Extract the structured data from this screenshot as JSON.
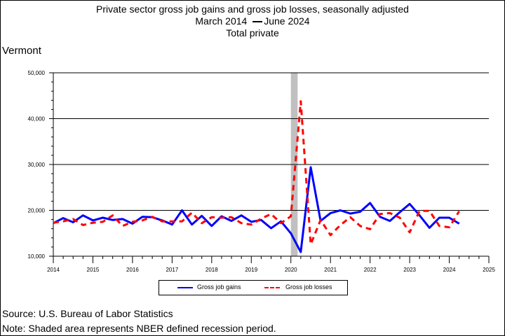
{
  "title": {
    "line1": "Private sector gross job gains and gross job losses, seasonally adjusted",
    "line2_start": "March 2014",
    "line2_end": "June 2024",
    "line3": "Total private"
  },
  "region": "Vermont",
  "footer": {
    "source": "Source: U.S. Bureau of Labor Statistics",
    "note": "Note: Shaded area represents NBER defined recession period."
  },
  "colors": {
    "gains": "#0000ff",
    "losses": "#ff0000",
    "recession": "#c0c0c0",
    "grid": "#000000"
  },
  "chart_data": {
    "type": "line",
    "title": "Private sector gross job gains and gross job losses, seasonally adjusted",
    "subtitle": "March 2014 — June 2024 · Total private",
    "xlabel": "",
    "ylabel": "",
    "xlim": [
      2014,
      2025
    ],
    "ylim": [
      10000,
      50000
    ],
    "x_ticks": [
      2014,
      2015,
      2016,
      2017,
      2018,
      2019,
      2020,
      2021,
      2022,
      2023,
      2024,
      2025
    ],
    "y_ticks": [
      10000,
      20000,
      30000,
      40000,
      50000
    ],
    "y_tick_labels": [
      "10,000",
      "20,000",
      "30,000",
      "40,000",
      "50,000"
    ],
    "grid": "horizontal",
    "legend": "bottom-center",
    "recession": {
      "start": 2020.0,
      "end": 2020.17
    },
    "x": [
      2014.0,
      2014.25,
      2014.5,
      2014.75,
      2015.0,
      2015.25,
      2015.5,
      2015.75,
      2016.0,
      2016.25,
      2016.5,
      2016.75,
      2017.0,
      2017.25,
      2017.5,
      2017.75,
      2018.0,
      2018.25,
      2018.5,
      2018.75,
      2019.0,
      2019.25,
      2019.5,
      2019.75,
      2020.0,
      2020.25,
      2020.5,
      2020.75,
      2021.0,
      2021.25,
      2021.5,
      2021.75,
      2022.0,
      2022.25,
      2022.5,
      2022.75,
      2023.0,
      2023.25,
      2023.5,
      2023.75,
      2024.0,
      2024.25
    ],
    "series": [
      {
        "name": "Gross job gains",
        "style": "solid",
        "values": [
          17200,
          18300,
          17400,
          18900,
          17800,
          18400,
          17900,
          18100,
          17100,
          18600,
          18500,
          17800,
          16900,
          20000,
          16900,
          18800,
          16600,
          18700,
          17700,
          18900,
          17500,
          17900,
          16100,
          17600,
          15000,
          10900,
          29400,
          17700,
          19400,
          20000,
          19300,
          19700,
          21600,
          18600,
          17700,
          19600,
          21400,
          18900,
          16200,
          18400,
          18400,
          17100
        ]
      },
      {
        "name": "Gross job losses",
        "style": "dashed",
        "values": [
          17300,
          17600,
          18100,
          16800,
          17300,
          17500,
          18900,
          16600,
          17500,
          17800,
          18600,
          17600,
          17600,
          17600,
          19500,
          17200,
          18500,
          18400,
          18500,
          17200,
          16900,
          18200,
          19200,
          17200,
          18700,
          43800,
          12600,
          17900,
          14600,
          16800,
          18500,
          16600,
          15900,
          19200,
          19400,
          18400,
          15200,
          19900,
          19900,
          16600,
          16300,
          19800
        ]
      }
    ]
  }
}
